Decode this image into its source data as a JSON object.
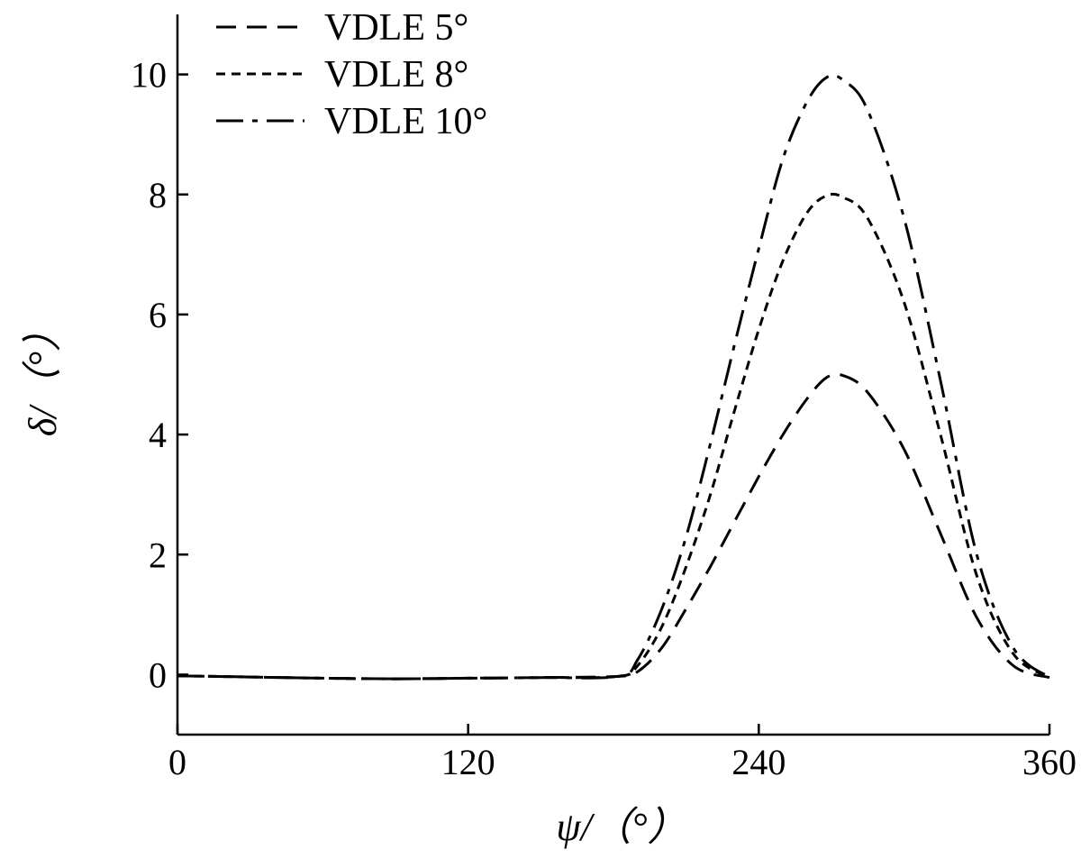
{
  "chart_data": {
    "type": "line",
    "title": "",
    "xlabel": "ψ/（°）",
    "ylabel": "δ/（°）",
    "xlim": [
      0,
      360
    ],
    "ylim": [
      -1,
      11
    ],
    "xticks": [
      0,
      120,
      240,
      360
    ],
    "yticks": [
      0,
      2,
      4,
      6,
      8,
      10
    ],
    "grid": false,
    "legend_position": "top-left",
    "series": [
      {
        "name": "VDLE 5°",
        "dash": "dashed",
        "color": "#000000",
        "x": [
          0,
          30,
          60,
          90,
          120,
          150,
          182,
          190,
          200,
          210,
          220,
          230,
          240,
          250,
          260,
          268,
          275,
          285,
          300,
          315,
          330,
          345,
          360
        ],
        "y": [
          -0.02,
          -0.04,
          -0.06,
          -0.07,
          -0.06,
          -0.05,
          -0.03,
          0.05,
          0.45,
          1.1,
          1.8,
          2.55,
          3.3,
          4.0,
          4.6,
          4.95,
          4.98,
          4.7,
          3.75,
          2.35,
          0.95,
          0.15,
          -0.05
        ]
      },
      {
        "name": "VDLE 8°",
        "dash": "dotted",
        "color": "#000000",
        "x": [
          0,
          30,
          60,
          90,
          120,
          150,
          182,
          190,
          200,
          210,
          220,
          230,
          240,
          250,
          260,
          268,
          275,
          285,
          300,
          315,
          330,
          345,
          360
        ],
        "y": [
          -0.02,
          -0.04,
          -0.06,
          -0.07,
          -0.06,
          -0.05,
          -0.03,
          0.15,
          0.8,
          1.8,
          3.0,
          4.4,
          5.75,
          6.9,
          7.7,
          7.98,
          7.95,
          7.6,
          6.2,
          4.0,
          1.65,
          0.35,
          -0.05
        ]
      },
      {
        "name": "VDLE 10°",
        "dash": "dashdot",
        "color": "#000000",
        "x": [
          0,
          30,
          60,
          90,
          120,
          150,
          182,
          190,
          200,
          210,
          220,
          230,
          240,
          250,
          260,
          268,
          275,
          285,
          300,
          315,
          330,
          345,
          360
        ],
        "y": [
          -0.02,
          -0.04,
          -0.06,
          -0.07,
          -0.06,
          -0.05,
          -0.03,
          0.25,
          1.1,
          2.3,
          3.85,
          5.5,
          7.1,
          8.6,
          9.55,
          9.95,
          9.9,
          9.4,
          7.6,
          4.9,
          2.0,
          0.45,
          -0.05
        ]
      }
    ]
  }
}
